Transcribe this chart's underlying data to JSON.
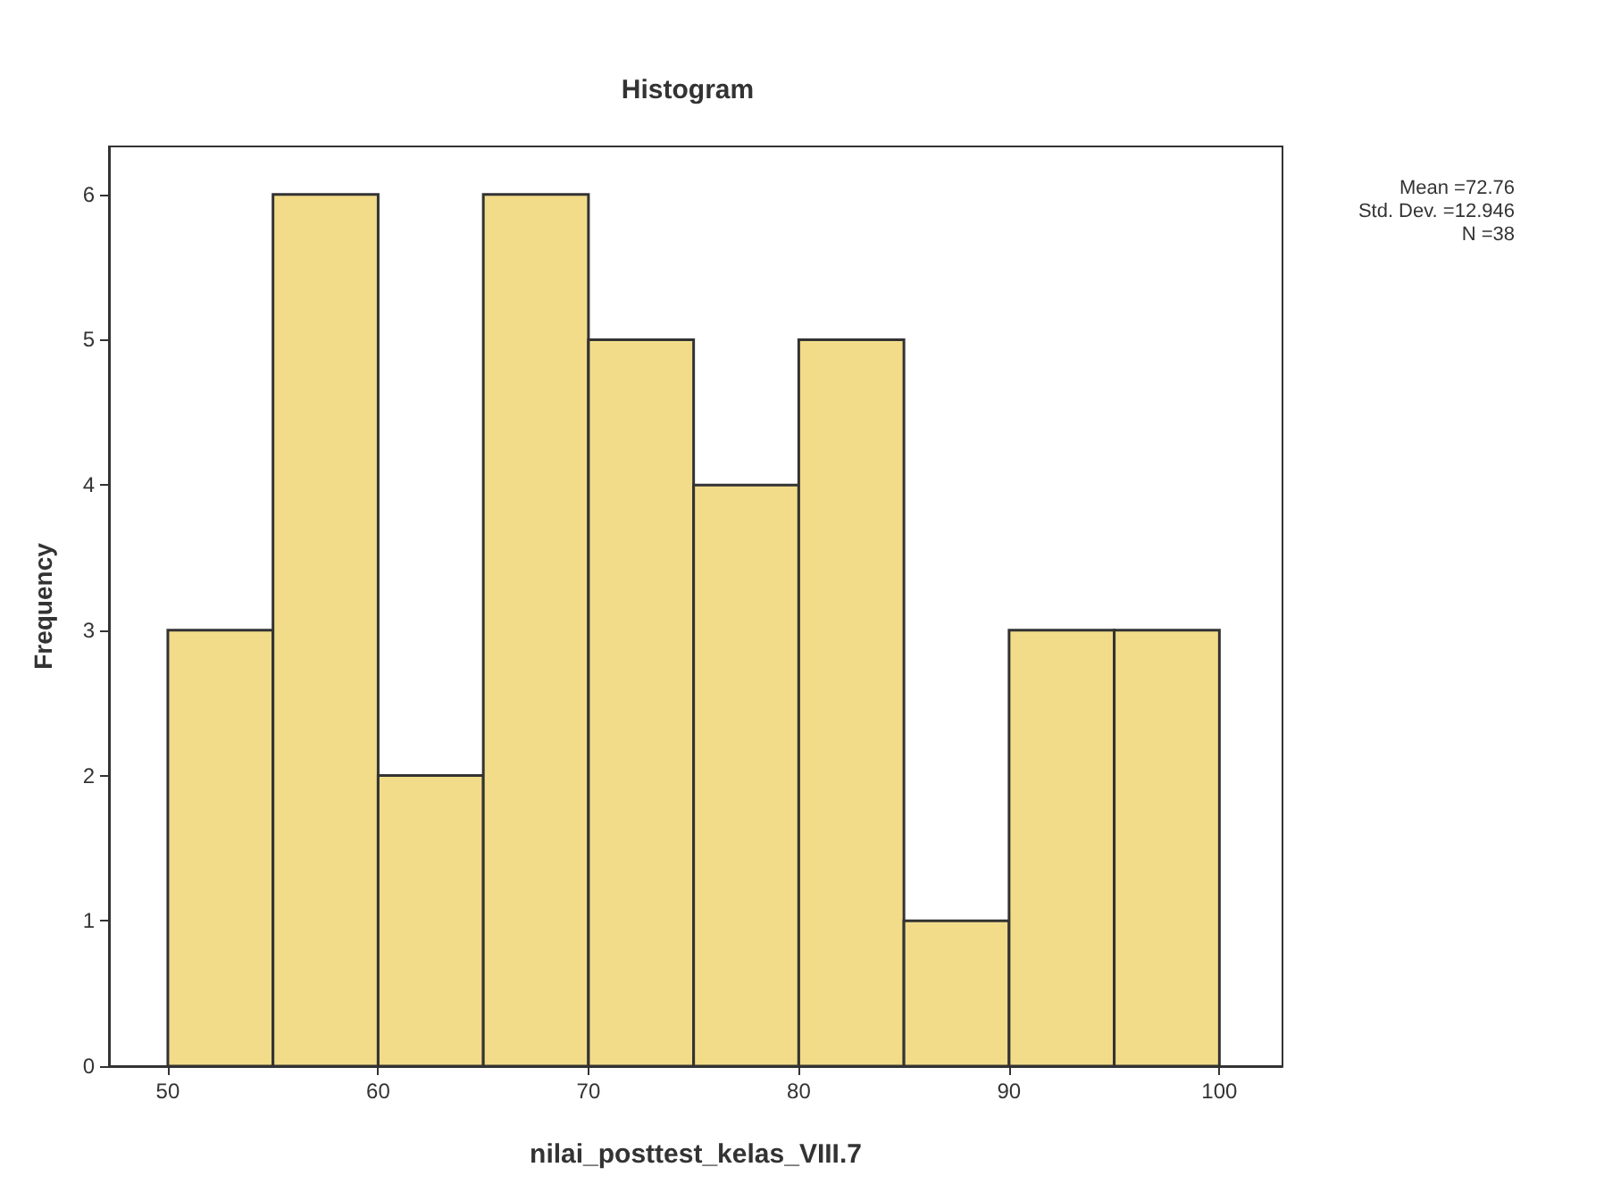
{
  "chart_data": {
    "type": "histogram",
    "title": "Histogram",
    "xlabel": "nilai_posttest_kelas_VIII.7",
    "ylabel": "Frequency",
    "bins": [
      50,
      55,
      60,
      65,
      70,
      75,
      80,
      85,
      90,
      95,
      100
    ],
    "values": [
      3,
      6,
      2,
      6,
      5,
      4,
      5,
      1,
      3,
      3
    ],
    "color": "#f2dc8a",
    "xlim": [
      47.2,
      103
    ],
    "xticks": [
      50,
      60,
      70,
      80,
      90,
      100
    ],
    "ylim": [
      0,
      6.33
    ],
    "yticks": [
      0,
      1,
      2,
      3,
      4,
      5,
      6
    ],
    "grid": false,
    "annotations": [
      "Mean =72.76",
      "Std. Dev. =12.946",
      "N =38"
    ]
  }
}
